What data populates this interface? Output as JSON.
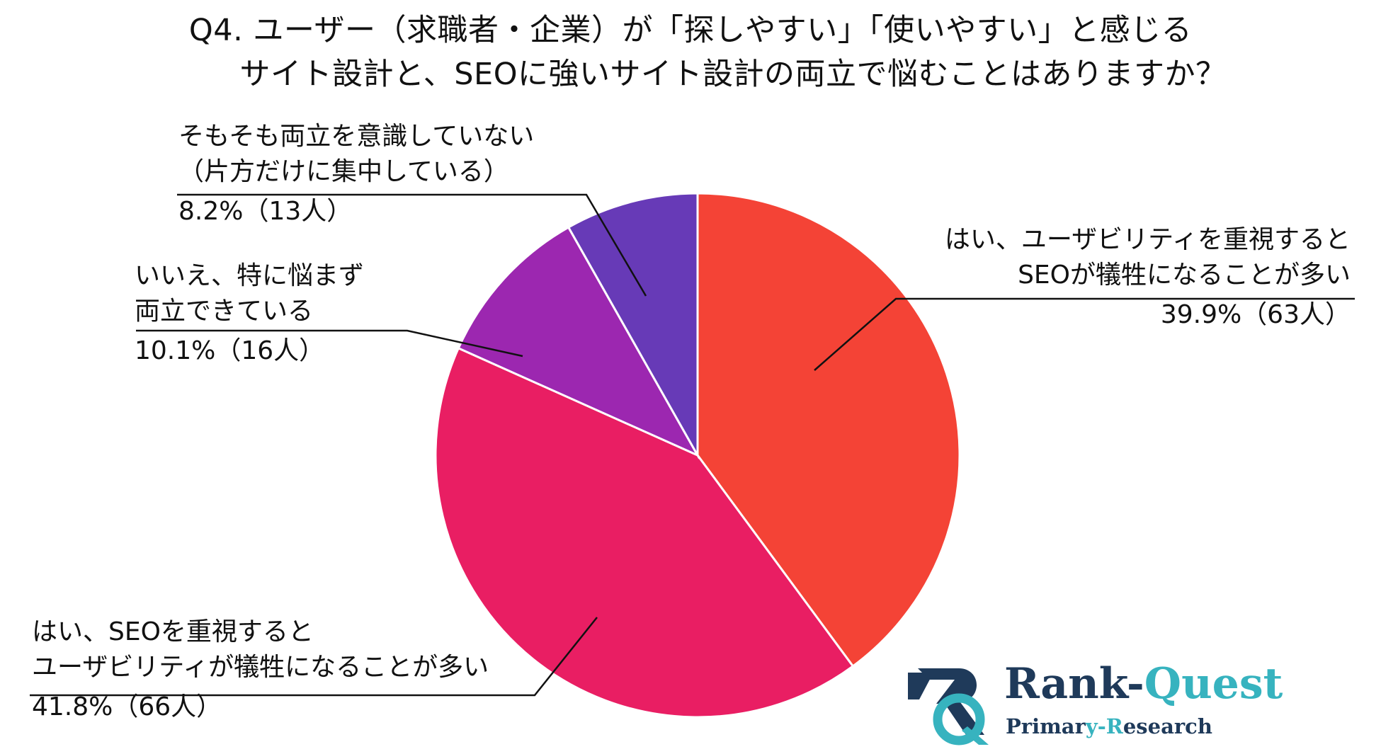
{
  "chart_data": {
    "type": "pie",
    "title": [
      "Q4. ユーザー（求職者・企業）が「探しやすい」「使いやすい」と感じる",
      "サイト設計と、SEOに強いサイト設計の両立で悩むことはありますか？"
    ],
    "slices": [
      {
        "label_lines": [
          "はい、ユーザビリティを重視すると",
          "SEOが犠牲になることが多い"
        ],
        "value": 39.9,
        "value_text": "39.9%（63人）",
        "color": "#f44336"
      },
      {
        "label_lines": [
          "はい、SEOを重視すると",
          "ユーザビリティが犠牲になることが多い"
        ],
        "value": 41.8,
        "value_text": "41.8%（66人）",
        "color": "#e91e63"
      },
      {
        "label_lines": [
          "いいえ、特に悩まず",
          "両立できている"
        ],
        "value": 10.1,
        "value_text": "10.1%（16人）",
        "color": "#9c27b0"
      },
      {
        "label_lines": [
          "そもそも両立を意識していない",
          "（片方だけに集中している）"
        ],
        "value": 8.2,
        "value_text": "8.2%（13人）",
        "color": "#673ab7"
      }
    ]
  },
  "logo": {
    "name_a": "Rank-",
    "name_b": "Quest",
    "sub_a": "Primar",
    "sub_b": "y-R",
    "sub_c": "esearch",
    "navy": "#1f3a5a",
    "teal": "#37b3bf"
  }
}
